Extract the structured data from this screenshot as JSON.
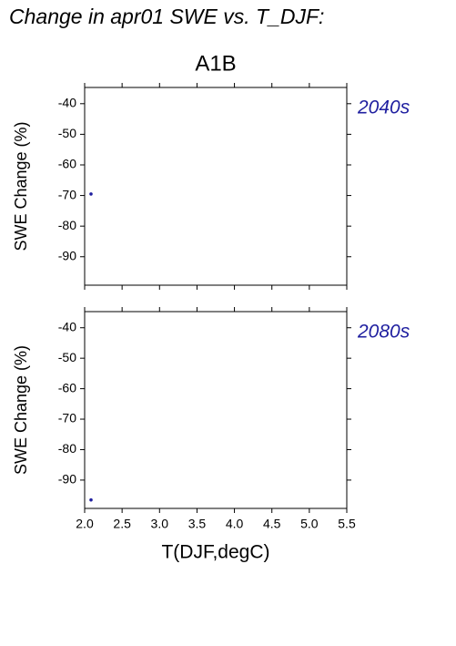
{
  "title": "Change in apr01 SWE vs. T_DJF:",
  "chart_data": [
    {
      "type": "scatter",
      "title": "A1B",
      "y_label": "SWE Change (%)",
      "annotation": "2040s",
      "x": [
        2.085
      ],
      "values": [
        -69.5
      ],
      "color": "#2020a0",
      "xlim": [
        2.0,
        5.5
      ],
      "ylim": [
        -99.3,
        -34.7
      ],
      "yticks": [
        -40,
        -50,
        -60,
        -70,
        -80,
        -90
      ]
    },
    {
      "type": "scatter",
      "y_label": "SWE Change (%)",
      "annotation": "2080s",
      "x_label": "T(DJF,degC)",
      "x": [
        2.085
      ],
      "values": [
        -96.5
      ],
      "color": "#2020a0",
      "xlim": [
        2.0,
        5.5
      ],
      "ylim": [
        -99.3,
        -34.7
      ],
      "yticks": [
        -40,
        -50,
        -60,
        -70,
        -80,
        -90
      ],
      "xticks": [
        {
          "value": 2,
          "label": "2.0"
        },
        2.5,
        {
          "value": 3,
          "label": "3.0"
        },
        3.5,
        {
          "value": 4,
          "label": "4.0"
        },
        4.5,
        {
          "value": 5,
          "label": "5.0"
        },
        5.5
      ]
    }
  ]
}
